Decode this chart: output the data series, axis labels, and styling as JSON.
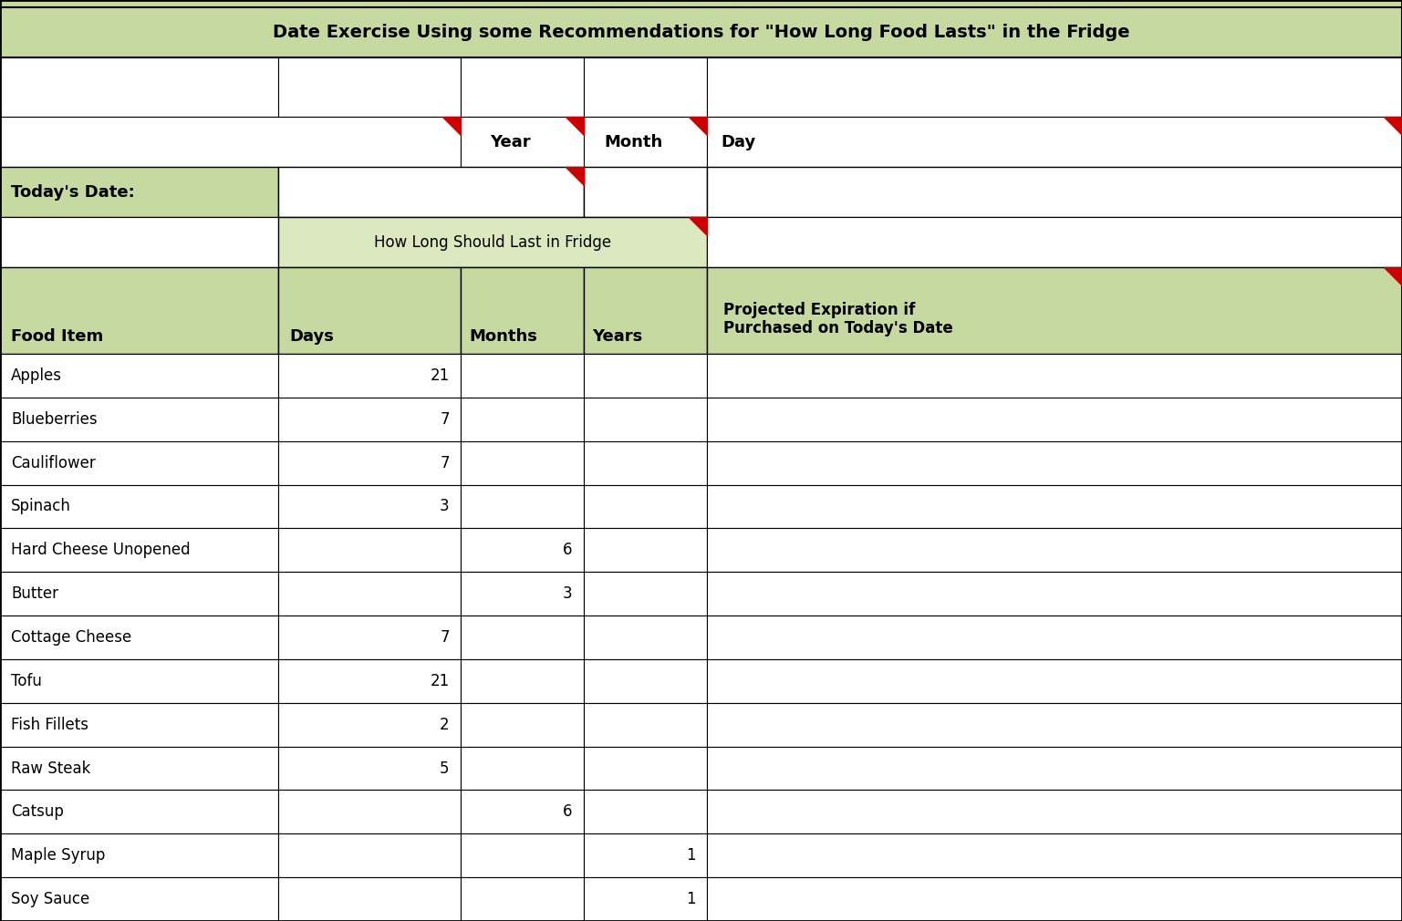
{
  "title": "Date Exercise Using some Recommendations for \"How Long Food Lasts\" in the Fridge",
  "title_bg": "#c5d9a0",
  "header_bg": "#c5d9a0",
  "white_bg": "#ffffff",
  "light_green_bg": "#dce9c0",
  "border_color": "#000000",
  "red_color": "#cc0000",
  "food_items": [
    {
      "name": "Apples",
      "days": "21",
      "months": "",
      "years": ""
    },
    {
      "name": "Blueberries",
      "days": "7",
      "months": "",
      "years": ""
    },
    {
      "name": "Cauliflower",
      "days": "7",
      "months": "",
      "years": ""
    },
    {
      "name": "Spinach",
      "days": "3",
      "months": "",
      "years": ""
    },
    {
      "name": "Hard Cheese Unopened",
      "days": "",
      "months": "6",
      "years": ""
    },
    {
      "name": "Butter",
      "days": "",
      "months": "3",
      "years": ""
    },
    {
      "name": "Cottage Cheese",
      "days": "7",
      "months": "",
      "years": ""
    },
    {
      "name": "Tofu",
      "days": "21",
      "months": "",
      "years": ""
    },
    {
      "name": "Fish Fillets",
      "days": "2",
      "months": "",
      "years": ""
    },
    {
      "name": "Raw Steak",
      "days": "5",
      "months": "",
      "years": ""
    },
    {
      "name": "Catsup",
      "days": "",
      "months": "6",
      "years": ""
    },
    {
      "name": "Maple Syrup",
      "days": "",
      "months": "",
      "years": "1"
    },
    {
      "name": "Soy Sauce",
      "days": "",
      "months": "",
      "years": "1"
    }
  ],
  "figsize": [
    15.37,
    10.1
  ],
  "dpi": 100
}
